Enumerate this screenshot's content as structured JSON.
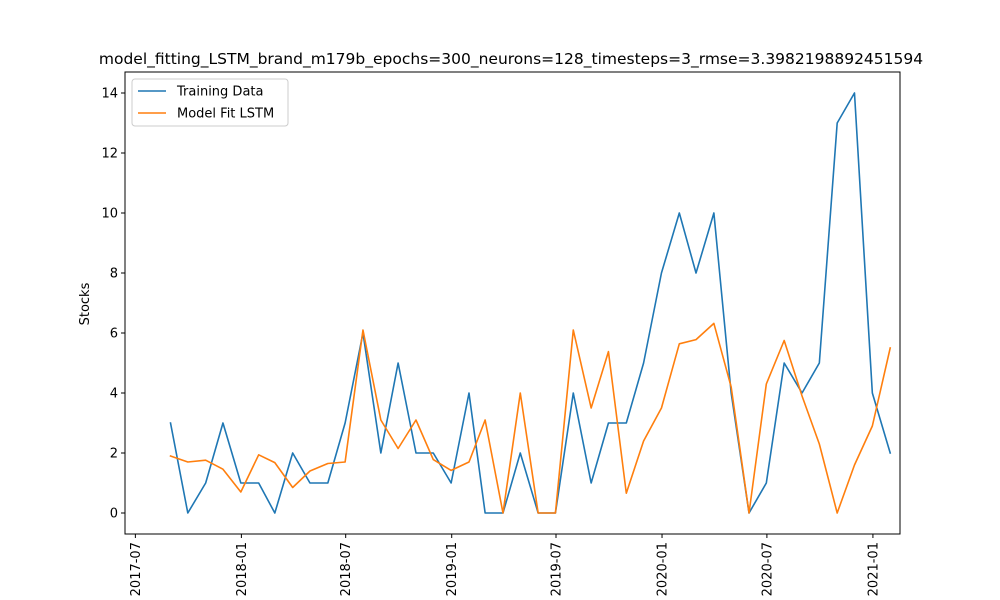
{
  "chart_data": {
    "type": "line",
    "title": "model_fitting_LSTM_brand_m179b_epochs=300_neurons=128_timesteps=3_rmse=3.3982198892451594",
    "xlabel": "",
    "ylabel": "Stocks",
    "xlim": [
      "2017-06-13",
      "2021-02-17"
    ],
    "ylim": [
      -0.7,
      14.7
    ],
    "x_ticks": [
      "2017-07",
      "2018-01",
      "2018-07",
      "2019-01",
      "2019-07",
      "2020-01",
      "2020-07",
      "2021-01"
    ],
    "y_ticks": [
      0,
      2,
      4,
      6,
      8,
      10,
      12,
      14
    ],
    "grid": false,
    "legend": "top-left",
    "x": [
      "2017-08-31",
      "2017-09-30",
      "2017-10-31",
      "2017-11-30",
      "2017-12-31",
      "2018-01-31",
      "2018-02-28",
      "2018-03-31",
      "2018-04-30",
      "2018-05-31",
      "2018-06-30",
      "2018-07-31",
      "2018-08-31",
      "2018-09-30",
      "2018-10-31",
      "2018-11-30",
      "2018-12-31",
      "2019-01-31",
      "2019-02-28",
      "2019-03-31",
      "2019-04-30",
      "2019-05-31",
      "2019-06-30",
      "2019-07-31",
      "2019-08-31",
      "2019-09-30",
      "2019-10-31",
      "2019-11-30",
      "2019-12-31",
      "2020-01-31",
      "2020-02-29",
      "2020-03-31",
      "2020-04-30",
      "2020-05-31",
      "2020-06-30",
      "2020-07-31",
      "2020-08-31",
      "2020-09-30",
      "2020-10-31",
      "2020-11-30",
      "2020-12-31",
      "2021-01-31"
    ],
    "series": [
      {
        "name": "Training Data",
        "color": "#1f77b4",
        "values": [
          3,
          0,
          1,
          3,
          1,
          1,
          0,
          2,
          1,
          1,
          3,
          6,
          2,
          5,
          2,
          2,
          1,
          4,
          0,
          0,
          2,
          0,
          0,
          4,
          1,
          3,
          3,
          5,
          8,
          10,
          8,
          10,
          4,
          0,
          1,
          5,
          4,
          5,
          13,
          14,
          4,
          2
        ]
      },
      {
        "name": "Model Fit LSTM",
        "color": "#ff7f0e",
        "values": [
          1.9,
          1.7,
          1.76,
          1.46,
          0.7,
          1.94,
          1.68,
          0.85,
          1.4,
          1.65,
          1.7,
          6.1,
          3.1,
          2.15,
          3.1,
          1.78,
          1.42,
          1.7,
          3.1,
          0,
          4.0,
          0,
          0,
          6.1,
          3.5,
          5.38,
          0.66,
          2.4,
          3.5,
          5.64,
          5.78,
          6.32,
          4.2,
          0,
          4.3,
          5.75,
          3.9,
          2.3,
          0,
          1.6,
          2.9,
          5.5
        ]
      }
    ]
  }
}
